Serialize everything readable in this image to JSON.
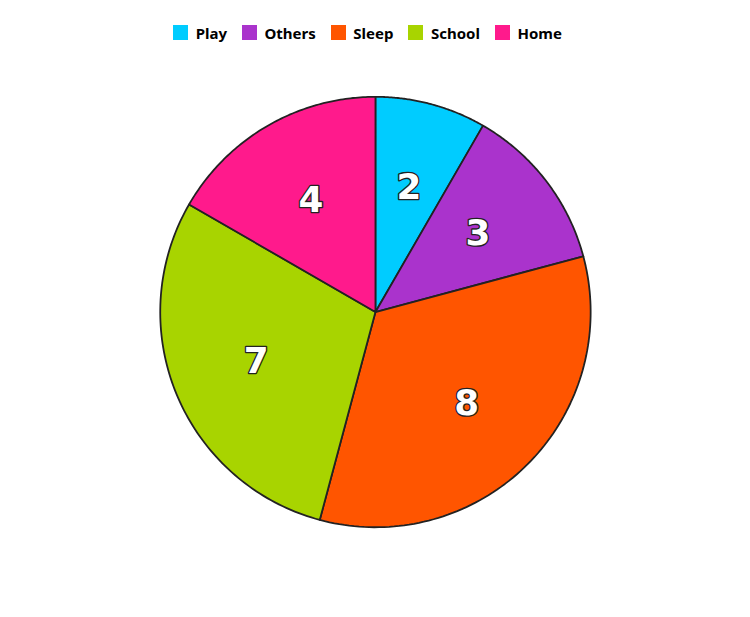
{
  "chart_data": {
    "type": "pie",
    "categories": [
      "Play",
      "Others",
      "Sleep",
      "School",
      "Home"
    ],
    "values": [
      2,
      3,
      8,
      7,
      4
    ],
    "colors": [
      "#00CCFF",
      "#AA33CC",
      "#FF5500",
      "#A8D400",
      "#FF1A8C"
    ],
    "data_labels": true,
    "legend": "top"
  }
}
